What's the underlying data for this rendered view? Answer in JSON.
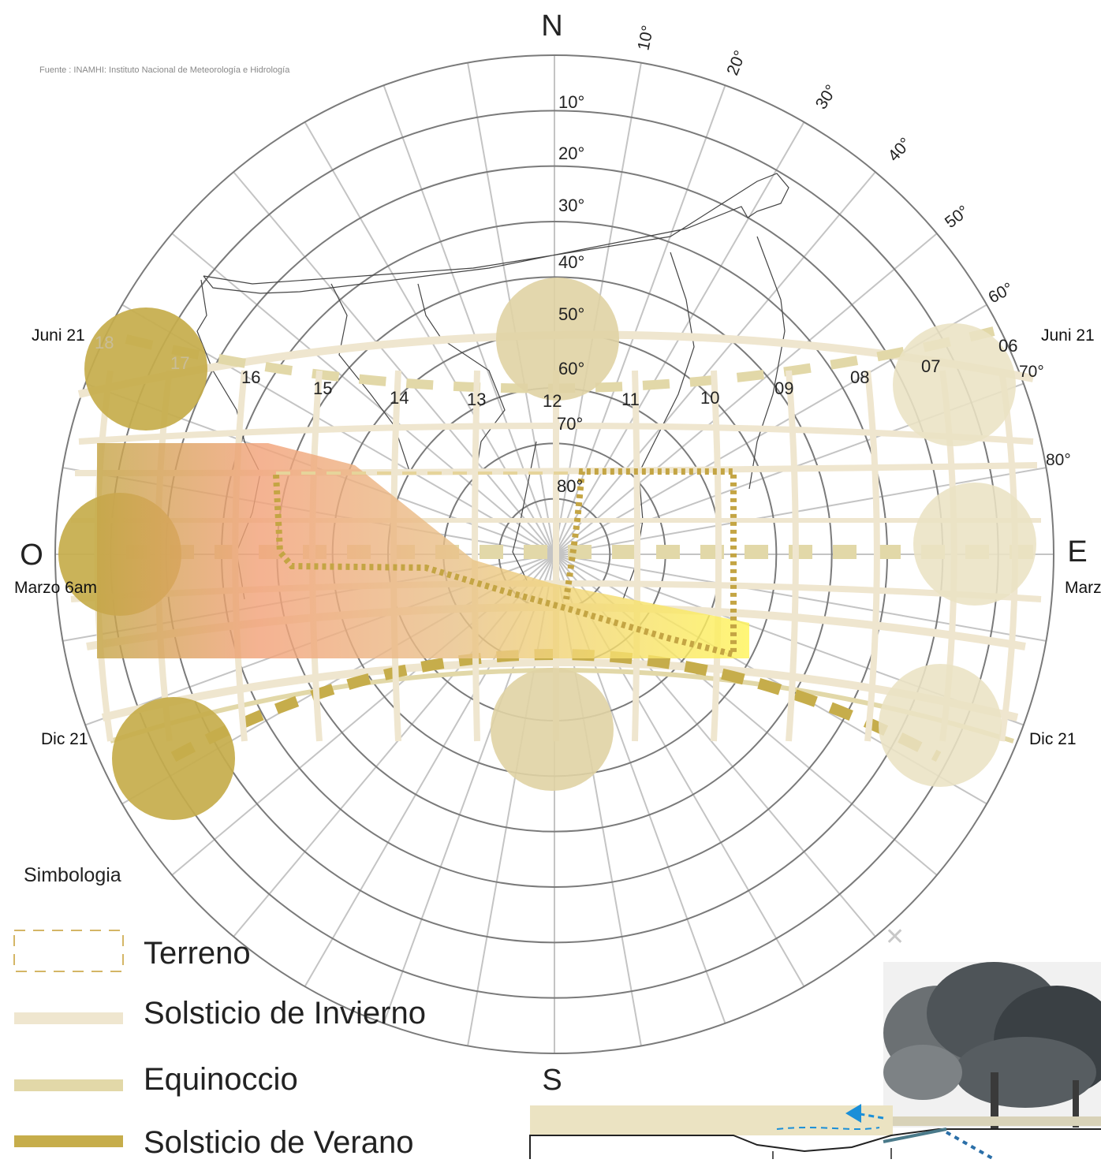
{
  "source": "Fuente : INAMHI: Instituto Nacional de Meteorología e Hidrología",
  "cardinals": {
    "north": "N",
    "south": "S",
    "east": "E",
    "west": "O"
  },
  "altitude_labels": [
    "10°",
    "20°",
    "30°",
    "40°",
    "50°",
    "60°",
    "70°",
    "80°"
  ],
  "azimuth_labels": [
    "10°",
    "20°",
    "30°",
    "40°",
    "50°",
    "60°",
    "70°",
    "80°"
  ],
  "hour_labels": [
    "18",
    "17",
    "16",
    "15",
    "14",
    "13",
    "12",
    "11",
    "10",
    "09",
    "08",
    "07",
    "06"
  ],
  "date_labels": {
    "west_june": "Juni 21",
    "east_june": "Juni 21",
    "west_march": "Marzo 6am",
    "east_march": "Marz",
    "west_dec": "Dic 21",
    "east_dec": "Dic 21"
  },
  "legend": {
    "title": "Simbologia",
    "items": [
      {
        "label": "Terreno"
      },
      {
        "label": "Solsticio de Invierno"
      },
      {
        "label": "Equinoccio"
      },
      {
        "label": "Solsticio de Verano"
      }
    ]
  },
  "colors": {
    "ring": "#7a7a7a",
    "spoke": "#c4c4c4",
    "winter": "#efe6cf",
    "equinox": "#e2d8a8",
    "summer": "#c6ad4b",
    "terrain": "#d4b666",
    "accent_blue": "#1a8fd8"
  }
}
